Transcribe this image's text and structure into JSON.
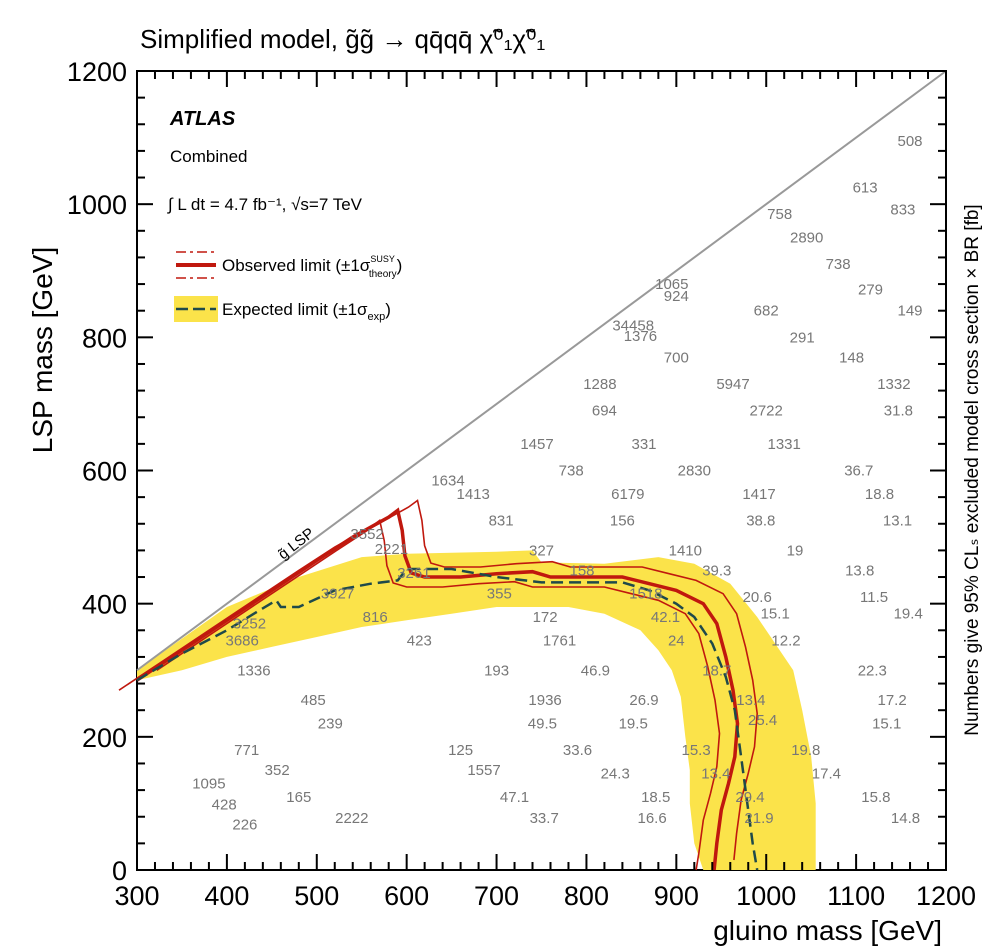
{
  "chart_data": {
    "type": "scatter",
    "title": "Simplified model, g̃g̃ → qq̄qq̄ χ̃⁰₁χ̃⁰₁",
    "xlabel": "gluino mass [GeV]",
    "ylabel": "LSP mass [GeV]",
    "zlabel": "Numbers give 95% CLₛ excluded model cross section × BR [fb]",
    "xlim": [
      300,
      1200
    ],
    "ylim": [
      0,
      1200
    ],
    "x_ticks": [
      300,
      400,
      500,
      600,
      700,
      800,
      900,
      1000,
      1100,
      1200
    ],
    "y_ticks": [
      0,
      200,
      400,
      600,
      800,
      1000,
      1200
    ],
    "x_tick_labels": [
      "300",
      "400",
      "500",
      "600",
      "700",
      "800",
      "900",
      "1000",
      "1100",
      "1200"
    ],
    "y_tick_labels": [
      "0",
      "200",
      "400",
      "600",
      "800",
      "1000",
      "1200"
    ],
    "experiment": "ATLAS",
    "channel": "Combined",
    "lumi_text": "∫ L dt = 4.7 fb⁻¹, √s=7 TeV",
    "diagonal_label": "g̃ LSP",
    "legend": {
      "position": "top-left",
      "observed": "Observed limit (±1σ",
      "observed_sup": "SUSY",
      "observed_sub": "theory",
      "expected": "Expected limit (±1σ",
      "expected_sub": "exp"
    },
    "colors": {
      "observed": "#c0180e",
      "expected": "#1f4a4a",
      "band": "#fbe34a",
      "diagonal": "#999999",
      "labels": "#777777"
    },
    "points": [
      {
        "x": 1160,
        "y": 1095,
        "label": "508"
      },
      {
        "x": 1110,
        "y": 1025,
        "label": "613"
      },
      {
        "x": 1152,
        "y": 992,
        "label": "833"
      },
      {
        "x": 1015,
        "y": 985,
        "label": "758"
      },
      {
        "x": 1045,
        "y": 950,
        "label": "2890"
      },
      {
        "x": 1080,
        "y": 910,
        "label": "738"
      },
      {
        "x": 895,
        "y": 880,
        "label": "1065"
      },
      {
        "x": 1116,
        "y": 872,
        "label": "279"
      },
      {
        "x": 900,
        "y": 862,
        "label": "924"
      },
      {
        "x": 1000,
        "y": 840,
        "label": "682"
      },
      {
        "x": 1160,
        "y": 840,
        "label": "149"
      },
      {
        "x": 852,
        "y": 818,
        "label": "34458"
      },
      {
        "x": 860,
        "y": 802,
        "label": "1376"
      },
      {
        "x": 1040,
        "y": 800,
        "label": "291"
      },
      {
        "x": 900,
        "y": 770,
        "label": "700"
      },
      {
        "x": 1095,
        "y": 770,
        "label": "148"
      },
      {
        "x": 815,
        "y": 730,
        "label": "1288"
      },
      {
        "x": 963,
        "y": 730,
        "label": "5947"
      },
      {
        "x": 1142,
        "y": 730,
        "label": "1332"
      },
      {
        "x": 820,
        "y": 690,
        "label": "694"
      },
      {
        "x": 1000,
        "y": 690,
        "label": "2722"
      },
      {
        "x": 1147,
        "y": 690,
        "label": "31.8"
      },
      {
        "x": 745,
        "y": 640,
        "label": "1457"
      },
      {
        "x": 864,
        "y": 640,
        "label": "331"
      },
      {
        "x": 1020,
        "y": 640,
        "label": "1331"
      },
      {
        "x": 783,
        "y": 600,
        "label": "738"
      },
      {
        "x": 920,
        "y": 600,
        "label": "2830"
      },
      {
        "x": 1103,
        "y": 600,
        "label": "36.7"
      },
      {
        "x": 646,
        "y": 585,
        "label": "1634"
      },
      {
        "x": 674,
        "y": 565,
        "label": "1413"
      },
      {
        "x": 846,
        "y": 565,
        "label": "6179"
      },
      {
        "x": 992,
        "y": 565,
        "label": "1417"
      },
      {
        "x": 1126,
        "y": 565,
        "label": "18.8"
      },
      {
        "x": 705,
        "y": 525,
        "label": "831"
      },
      {
        "x": 840,
        "y": 525,
        "label": "156"
      },
      {
        "x": 994,
        "y": 525,
        "label": "38.8"
      },
      {
        "x": 1146,
        "y": 525,
        "label": "13.1"
      },
      {
        "x": 556,
        "y": 505,
        "label": "3552"
      },
      {
        "x": 750,
        "y": 480,
        "label": "327"
      },
      {
        "x": 583,
        "y": 482,
        "label": "2221"
      },
      {
        "x": 910,
        "y": 480,
        "label": "1410"
      },
      {
        "x": 1032,
        "y": 480,
        "label": "19"
      },
      {
        "x": 608,
        "y": 446,
        "label": "3261"
      },
      {
        "x": 795,
        "y": 450,
        "label": "158"
      },
      {
        "x": 945,
        "y": 450,
        "label": "39.3"
      },
      {
        "x": 1104,
        "y": 450,
        "label": "13.8"
      },
      {
        "x": 523,
        "y": 415,
        "label": "3927"
      },
      {
        "x": 703,
        "y": 415,
        "label": "355"
      },
      {
        "x": 866,
        "y": 415,
        "label": "1518"
      },
      {
        "x": 990,
        "y": 410,
        "label": "20.6"
      },
      {
        "x": 1120,
        "y": 410,
        "label": "11.5"
      },
      {
        "x": 565,
        "y": 380,
        "label": "816"
      },
      {
        "x": 754,
        "y": 380,
        "label": "172"
      },
      {
        "x": 888,
        "y": 380,
        "label": "42.1"
      },
      {
        "x": 1010,
        "y": 385,
        "label": "15.1"
      },
      {
        "x": 1158,
        "y": 385,
        "label": "19.4"
      },
      {
        "x": 425,
        "y": 370,
        "label": "3252"
      },
      {
        "x": 417,
        "y": 345,
        "label": "3686"
      },
      {
        "x": 614,
        "y": 345,
        "label": "423"
      },
      {
        "x": 770,
        "y": 345,
        "label": "1761"
      },
      {
        "x": 900,
        "y": 345,
        "label": "24"
      },
      {
        "x": 1022,
        "y": 345,
        "label": "12.2"
      },
      {
        "x": 430,
        "y": 300,
        "label": "1336"
      },
      {
        "x": 700,
        "y": 300,
        "label": "193"
      },
      {
        "x": 810,
        "y": 300,
        "label": "46.9"
      },
      {
        "x": 945,
        "y": 300,
        "label": "18.7"
      },
      {
        "x": 1118,
        "y": 300,
        "label": "22.3"
      },
      {
        "x": 496,
        "y": 255,
        "label": "485"
      },
      {
        "x": 754,
        "y": 255,
        "label": "1936"
      },
      {
        "x": 864,
        "y": 255,
        "label": "26.9"
      },
      {
        "x": 983,
        "y": 255,
        "label": "13.4"
      },
      {
        "x": 1140,
        "y": 255,
        "label": "17.2"
      },
      {
        "x": 515,
        "y": 220,
        "label": "239"
      },
      {
        "x": 751,
        "y": 220,
        "label": "49.5"
      },
      {
        "x": 852,
        "y": 220,
        "label": "19.5"
      },
      {
        "x": 996,
        "y": 225,
        "label": "25.4"
      },
      {
        "x": 1134,
        "y": 220,
        "label": "15.1"
      },
      {
        "x": 422,
        "y": 180,
        "label": "771"
      },
      {
        "x": 660,
        "y": 180,
        "label": "125"
      },
      {
        "x": 790,
        "y": 180,
        "label": "33.6"
      },
      {
        "x": 922,
        "y": 180,
        "label": "15.3"
      },
      {
        "x": 1044,
        "y": 180,
        "label": "19.8"
      },
      {
        "x": 456,
        "y": 150,
        "label": "352"
      },
      {
        "x": 686,
        "y": 150,
        "label": "1557"
      },
      {
        "x": 832,
        "y": 145,
        "label": "24.3"
      },
      {
        "x": 944,
        "y": 145,
        "label": "13.4"
      },
      {
        "x": 1067,
        "y": 145,
        "label": "17.4"
      },
      {
        "x": 380,
        "y": 130,
        "label": "1095"
      },
      {
        "x": 480,
        "y": 110,
        "label": "165"
      },
      {
        "x": 720,
        "y": 110,
        "label": "47.1"
      },
      {
        "x": 877,
        "y": 110,
        "label": "18.5"
      },
      {
        "x": 982,
        "y": 110,
        "label": "29.4"
      },
      {
        "x": 1122,
        "y": 110,
        "label": "15.8"
      },
      {
        "x": 397,
        "y": 98,
        "label": "428"
      },
      {
        "x": 539,
        "y": 78,
        "label": "2222"
      },
      {
        "x": 753,
        "y": 78,
        "label": "33.7"
      },
      {
        "x": 873,
        "y": 78,
        "label": "16.6"
      },
      {
        "x": 992,
        "y": 78,
        "label": "21.9"
      },
      {
        "x": 1155,
        "y": 78,
        "label": "14.8"
      },
      {
        "x": 420,
        "y": 68,
        "label": "226"
      }
    ],
    "expected_limit": [
      [
        300,
        285
      ],
      [
        350,
        325
      ],
      [
        400,
        360
      ],
      [
        430,
        385
      ],
      [
        455,
        405
      ],
      [
        460,
        395
      ],
      [
        480,
        395
      ],
      [
        520,
        420
      ],
      [
        560,
        430
      ],
      [
        590,
        435
      ],
      [
        600,
        452
      ],
      [
        650,
        452
      ],
      [
        700,
        440
      ],
      [
        750,
        432
      ],
      [
        800,
        432
      ],
      [
        840,
        432
      ],
      [
        870,
        420
      ],
      [
        900,
        400
      ],
      [
        920,
        380
      ],
      [
        940,
        340
      ],
      [
        955,
        290
      ],
      [
        965,
        240
      ],
      [
        970,
        190
      ],
      [
        975,
        140
      ],
      [
        980,
        90
      ],
      [
        985,
        40
      ],
      [
        990,
        0
      ]
    ],
    "expected_band_upper": [
      [
        300,
        300
      ],
      [
        400,
        395
      ],
      [
        480,
        440
      ],
      [
        550,
        470
      ],
      [
        600,
        475
      ],
      [
        700,
        478
      ],
      [
        740,
        480
      ],
      [
        750,
        462
      ],
      [
        820,
        460
      ],
      [
        880,
        470
      ],
      [
        920,
        460
      ],
      [
        960,
        430
      ],
      [
        990,
        380
      ],
      [
        1010,
        340
      ],
      [
        1030,
        300
      ],
      [
        1040,
        240
      ],
      [
        1050,
        170
      ],
      [
        1055,
        100
      ],
      [
        1055,
        0
      ]
    ],
    "expected_band_lower": [
      [
        1020,
        0
      ],
      [
        930,
        0
      ],
      [
        920,
        40
      ],
      [
        915,
        100
      ],
      [
        915,
        150
      ],
      [
        910,
        200
      ],
      [
        905,
        260
      ],
      [
        895,
        300
      ],
      [
        880,
        330
      ],
      [
        860,
        360
      ],
      [
        820,
        385
      ],
      [
        780,
        395
      ],
      [
        740,
        395
      ],
      [
        700,
        395
      ],
      [
        650,
        385
      ],
      [
        600,
        375
      ],
      [
        550,
        365
      ],
      [
        500,
        350
      ],
      [
        450,
        335
      ],
      [
        400,
        320
      ],
      [
        350,
        300
      ],
      [
        300,
        285
      ]
    ]
  }
}
